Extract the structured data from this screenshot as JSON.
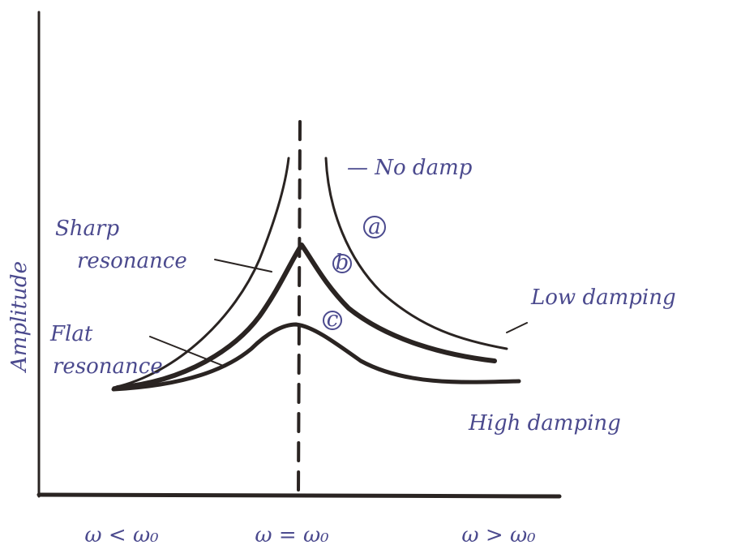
{
  "axes": {
    "y_label": "Amplitude",
    "x_labels": [
      "ω < ω₀",
      "ω = ω₀",
      "ω > ω₀"
    ]
  },
  "curves": [
    {
      "label": "— No damp",
      "marker": "a"
    },
    {
      "label": "Low damping",
      "marker": "b"
    },
    {
      "label": "High damping",
      "marker": "c"
    }
  ],
  "annotations": {
    "sharp": [
      "Sharp",
      "resonance"
    ],
    "flat": [
      "Flat",
      "resonance"
    ]
  }
}
